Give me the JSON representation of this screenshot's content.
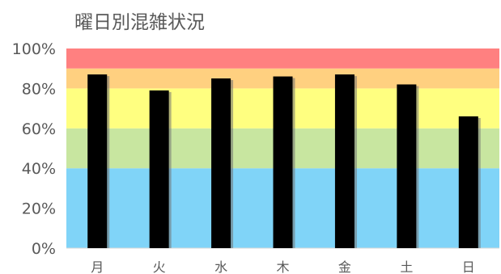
{
  "chart_data": {
    "type": "bar",
    "title": "曜日別混雑状況",
    "xlabel": "",
    "ylabel": "",
    "categories": [
      "月",
      "火",
      "水",
      "木",
      "金",
      "土",
      "日"
    ],
    "values": [
      87,
      79,
      85,
      86,
      87,
      82,
      66
    ],
    "ylim": [
      0,
      100
    ],
    "y_ticks": [
      0,
      20,
      40,
      60,
      80,
      100
    ],
    "y_tick_labels": [
      "0%",
      "20%",
      "40%",
      "60%",
      "80%",
      "100%"
    ],
    "grid": false,
    "bar_color": "#000000",
    "bands": [
      {
        "from": 0,
        "to": 40,
        "color": "#80d4f8"
      },
      {
        "from": 40,
        "to": 60,
        "color": "#c8e6a0"
      },
      {
        "from": 60,
        "to": 80,
        "color": "#ffff80"
      },
      {
        "from": 80,
        "to": 90,
        "color": "#ffd080"
      },
      {
        "from": 90,
        "to": 100,
        "color": "#ff8080"
      }
    ]
  }
}
